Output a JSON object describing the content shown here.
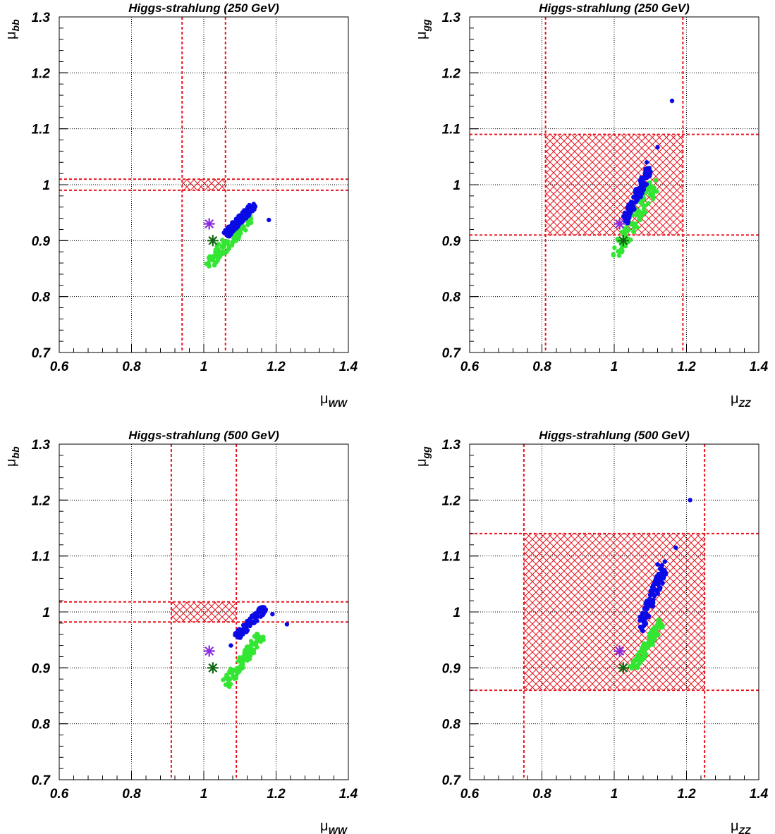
{
  "colors": {
    "series_a": "#0a0ae6",
    "series_b": "#33e633",
    "star_a": "#8a2be2",
    "star_b": "#116611",
    "constraint": "#e8141e",
    "grid": "#000000"
  },
  "chart_data": [
    {
      "type": "scatter",
      "title": "Higgs-strahlung (250 GeV)",
      "xlabel": {
        "base": "μ",
        "sub": "WW"
      },
      "ylabel": {
        "base": "μ",
        "sub": "bb"
      },
      "xlim": [
        0.6,
        1.4
      ],
      "ylim": [
        0.7,
        1.3
      ],
      "xticks": [
        "0.6",
        "0.8",
        "1",
        "1.2",
        "1.4"
      ],
      "yticks": [
        "0.7",
        "0.8",
        "0.9",
        "1",
        "1.1",
        "1.2",
        "1.3"
      ],
      "grid": true,
      "band_x": [
        0.94,
        1.06
      ],
      "band_y": [
        0.99,
        1.01
      ],
      "stars": [
        {
          "x": 1.015,
          "y": 0.93
        },
        {
          "x": 1.025,
          "y": 0.9
        }
      ],
      "series_a": {
        "x_range": [
          1.06,
          1.14
        ],
        "y_range": [
          0.91,
          0.965
        ],
        "outliers": [
          [
            1.18,
            0.937
          ],
          [
            1.135,
            0.953
          ]
        ]
      },
      "series_b": {
        "x_range": [
          1.01,
          1.13
        ],
        "y_range": [
          0.855,
          0.945
        ],
        "outliers": []
      }
    },
    {
      "type": "scatter",
      "title": "Higgs-strahlung (250 GeV)",
      "xlabel": {
        "base": "μ",
        "sub": "ZZ"
      },
      "ylabel": {
        "base": "μ",
        "sub": "gg"
      },
      "xlim": [
        0.6,
        1.4
      ],
      "ylim": [
        0.7,
        1.3
      ],
      "xticks": [
        "0.6",
        "0.8",
        "1",
        "1.2",
        "1.4"
      ],
      "yticks": [
        "0.7",
        "0.8",
        "0.9",
        "1",
        "1.1",
        "1.2",
        "1.3"
      ],
      "grid": true,
      "band_x": [
        0.81,
        1.19
      ],
      "band_y": [
        0.91,
        1.09
      ],
      "stars": [
        {
          "x": 1.015,
          "y": 0.93
        },
        {
          "x": 1.025,
          "y": 0.9
        }
      ],
      "series_a": {
        "x_range": [
          1.03,
          1.1
        ],
        "y_range": [
          0.935,
          1.03
        ],
        "outliers": [
          [
            1.16,
            1.15
          ],
          [
            1.12,
            1.067
          ],
          [
            1.09,
            1.04
          ]
        ]
      },
      "series_b": {
        "x_range": [
          1.0,
          1.11
        ],
        "y_range": [
          0.87,
          1.0
        ],
        "outliers": [
          [
            1.115,
            1.008
          ]
        ]
      }
    },
    {
      "type": "scatter",
      "title": "Higgs-strahlung (500 GeV)",
      "xlabel": {
        "base": "μ",
        "sub": "WW"
      },
      "ylabel": {
        "base": "μ",
        "sub": "bb"
      },
      "xlim": [
        0.6,
        1.4
      ],
      "ylim": [
        0.7,
        1.3
      ],
      "xticks": [
        "0.6",
        "0.8",
        "1",
        "1.2",
        "1.4"
      ],
      "yticks": [
        "0.7",
        "0.8",
        "0.9",
        "1",
        "1.1",
        "1.2",
        "1.3"
      ],
      "grid": true,
      "band_x": [
        0.91,
        1.09
      ],
      "band_y": [
        0.982,
        1.018
      ],
      "stars": [
        {
          "x": 1.015,
          "y": 0.93
        },
        {
          "x": 1.025,
          "y": 0.9
        }
      ],
      "series_a": {
        "x_range": [
          1.09,
          1.17
        ],
        "y_range": [
          0.955,
          1.008
        ],
        "outliers": [
          [
            1.23,
            0.978
          ],
          [
            1.075,
            0.94
          ],
          [
            1.19,
            0.996
          ]
        ]
      },
      "series_b": {
        "x_range": [
          1.06,
          1.16
        ],
        "y_range": [
          0.87,
          0.96
        ],
        "outliers": []
      }
    },
    {
      "type": "scatter",
      "title": "Higgs-strahlung (500 GeV)",
      "xlabel": {
        "base": "μ",
        "sub": "ZZ"
      },
      "ylabel": {
        "base": "μ",
        "sub": "gg"
      },
      "xlim": [
        0.6,
        1.4
      ],
      "ylim": [
        0.7,
        1.3
      ],
      "xticks": [
        "0.6",
        "0.8",
        "1",
        "1.2",
        "1.4"
      ],
      "yticks": [
        "0.7",
        "0.8",
        "0.9",
        "1",
        "1.1",
        "1.2",
        "1.3"
      ],
      "grid": true,
      "band_x": [
        0.75,
        1.25
      ],
      "band_y": [
        0.86,
        1.14
      ],
      "stars": [
        {
          "x": 1.015,
          "y": 0.93
        },
        {
          "x": 1.025,
          "y": 0.9
        }
      ],
      "series_a": {
        "x_range": [
          1.07,
          1.14
        ],
        "y_range": [
          0.97,
          1.08
        ],
        "outliers": [
          [
            1.21,
            1.2
          ],
          [
            1.17,
            1.115
          ],
          [
            1.14,
            1.09
          ],
          [
            1.12,
            1.085
          ]
        ]
      },
      "series_b": {
        "x_range": [
          1.05,
          1.13
        ],
        "y_range": [
          0.895,
          0.98
        ],
        "outliers": []
      }
    }
  ]
}
